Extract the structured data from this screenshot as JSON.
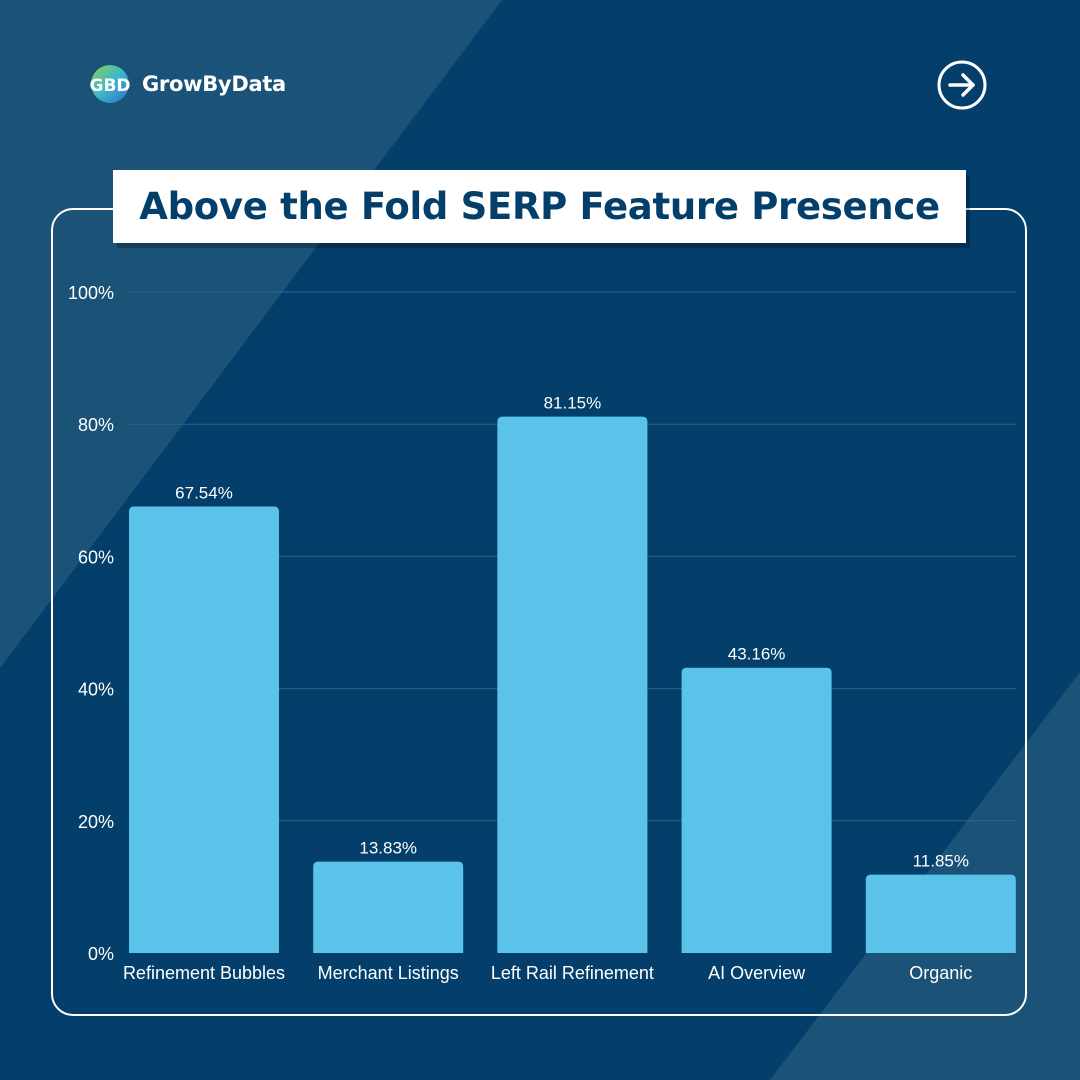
{
  "brand": {
    "name": "GrowByData",
    "logo_text": "GBD",
    "logo_icon": "growbydata-logo-icon"
  },
  "nav": {
    "next_icon": "arrow-right-circle-icon"
  },
  "colors": {
    "background": "#033f6a",
    "background_shape": "#1b5278",
    "bar": "#5bc3ea",
    "title_text": "#033f6a",
    "gridline": "#2a6690"
  },
  "chart_data": {
    "type": "bar",
    "title": "Above the Fold SERP Feature Presence",
    "categories": [
      "Refinement Bubbles",
      "Merchant Listings",
      "Left Rail Refinement",
      "AI Overview",
      "Organic"
    ],
    "values": [
      67.54,
      13.83,
      81.15,
      43.16,
      11.85
    ],
    "data_labels": [
      "67.54%",
      "13.83%",
      "81.15%",
      "43.16%",
      "11.85%"
    ],
    "y_ticks": [
      0,
      20,
      40,
      60,
      80,
      100
    ],
    "y_tick_labels": [
      "0%",
      "20%",
      "40%",
      "60%",
      "80%",
      "100%"
    ],
    "ylim": [
      0,
      100
    ],
    "xlabel": "",
    "ylabel": "",
    "grid": true,
    "legend": "none"
  }
}
